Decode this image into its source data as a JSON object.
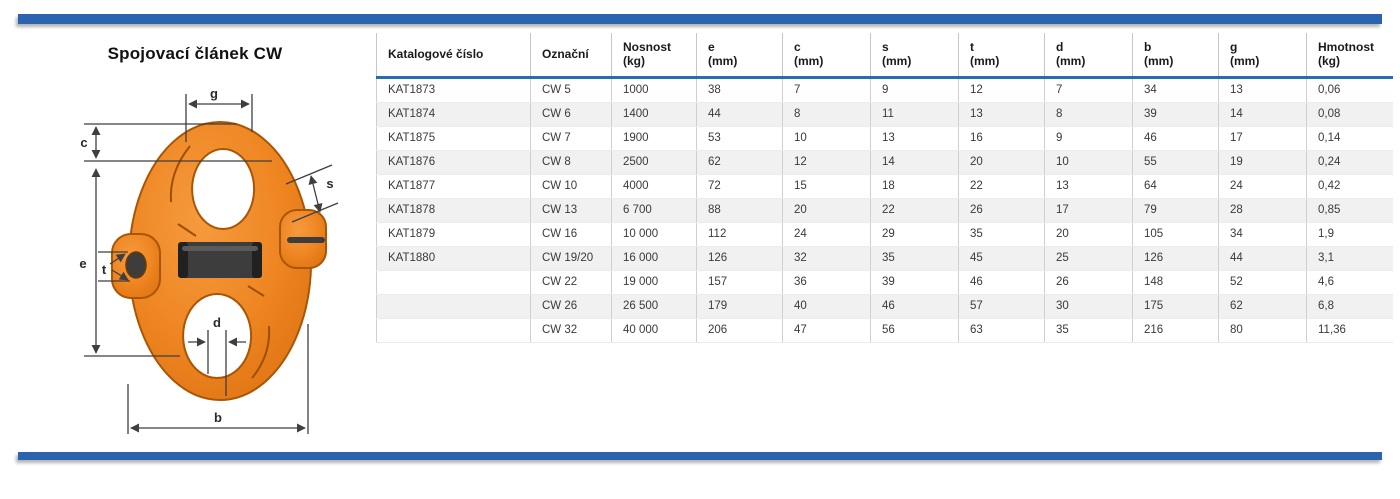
{
  "page": {
    "title": "Spojovací článek CW",
    "accent_color": "#2b63ae"
  },
  "diagram": {
    "description": "technical-drawing-connecting-link-CW",
    "link_color": "#ee8420",
    "pin_color": "#3d3d3d",
    "dimension_labels": {
      "g": "g",
      "c": "c",
      "e": "e",
      "t": "t",
      "s": "s",
      "d": "d",
      "b": "b"
    }
  },
  "table": {
    "headers": [
      "Katalogové číslo",
      "Označní",
      "Nosnost\n(kg)",
      "e\n(mm)",
      "c\n(mm)",
      "s\n(mm)",
      "t\n(mm)",
      "d\n(mm)",
      "b\n(mm)",
      "g\n(mm)",
      "Hmotnost\n(kg)"
    ],
    "rows": [
      [
        "KAT1873",
        "CW 5",
        "1000",
        "38",
        "7",
        "9",
        "12",
        "7",
        "34",
        "13",
        "0,06"
      ],
      [
        "KAT1874",
        "CW 6",
        "1400",
        "44",
        "8",
        "11",
        "13",
        "8",
        "39",
        "14",
        "0,08"
      ],
      [
        "KAT1875",
        "CW 7",
        "1900",
        "53",
        "10",
        "13",
        "16",
        "9",
        "46",
        "17",
        "0,14"
      ],
      [
        "KAT1876",
        "CW 8",
        "2500",
        "62",
        "12",
        "14",
        "20",
        "10",
        "55",
        "19",
        "0,24"
      ],
      [
        "KAT1877",
        "CW 10",
        "4000",
        "72",
        "15",
        "18",
        "22",
        "13",
        "64",
        "24",
        "0,42"
      ],
      [
        "KAT1878",
        "CW 13",
        "6 700",
        "88",
        "20",
        "22",
        "26",
        "17",
        "79",
        "28",
        "0,85"
      ],
      [
        "KAT1879",
        "CW 16",
        "10 000",
        "112",
        "24",
        "29",
        "35",
        "20",
        "105",
        "34",
        "1,9"
      ],
      [
        "KAT1880",
        "CW 19/20",
        "16 000",
        "126",
        "32",
        "35",
        "45",
        "25",
        "126",
        "44",
        "3,1"
      ],
      [
        "",
        "CW 22",
        "19 000",
        "157",
        "36",
        "39",
        "46",
        "26",
        "148",
        "52",
        "4,6"
      ],
      [
        "",
        "CW 26",
        "26 500",
        "179",
        "40",
        "46",
        "57",
        "30",
        "175",
        "62",
        "6,8"
      ],
      [
        "",
        "CW 32",
        "40 000",
        "206",
        "47",
        "56",
        "63",
        "35",
        "216",
        "80",
        "11,36"
      ]
    ]
  }
}
